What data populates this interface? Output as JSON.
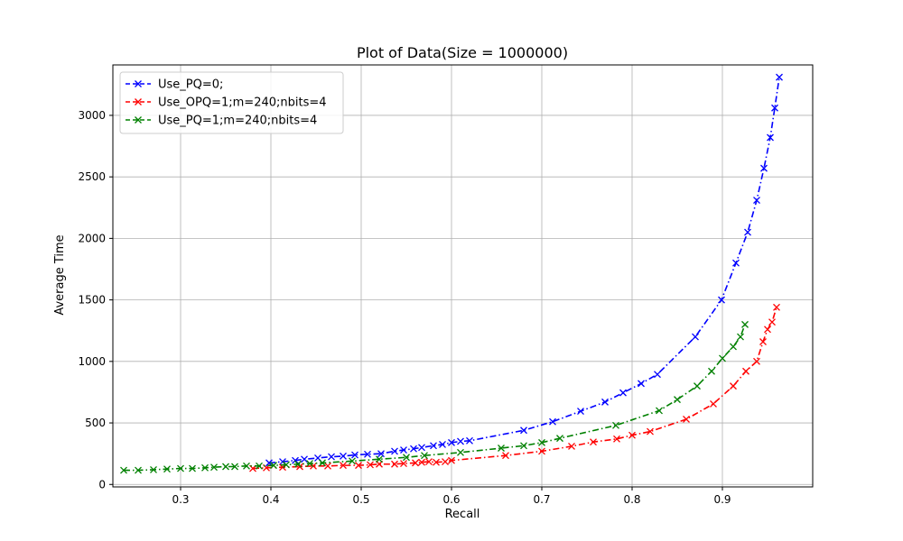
{
  "chart_data": {
    "type": "line",
    "title": "Plot of Data(Size = 1000000)",
    "xlabel": "Recall",
    "ylabel": "Average Time",
    "xlim": [
      0.225,
      1.0
    ],
    "ylim": [
      -20,
      3410
    ],
    "xticks": [
      0.3,
      0.4,
      0.5,
      0.6,
      0.7,
      0.8,
      0.9
    ],
    "yticks": [
      0,
      500,
      1000,
      1500,
      2000,
      2500,
      3000
    ],
    "grid": true,
    "legend_position": "top-left",
    "series": [
      {
        "name": "Use_PQ=0;",
        "color": "#0000ff",
        "linestyle": "dashdot",
        "marker": "x",
        "points": [
          [
            0.398,
            175
          ],
          [
            0.413,
            185
          ],
          [
            0.427,
            195
          ],
          [
            0.437,
            205
          ],
          [
            0.452,
            215
          ],
          [
            0.467,
            225
          ],
          [
            0.48,
            230
          ],
          [
            0.493,
            240
          ],
          [
            0.507,
            245
          ],
          [
            0.522,
            250
          ],
          [
            0.537,
            270
          ],
          [
            0.547,
            280
          ],
          [
            0.558,
            290
          ],
          [
            0.567,
            300
          ],
          [
            0.58,
            315
          ],
          [
            0.59,
            325
          ],
          [
            0.6,
            340
          ],
          [
            0.61,
            350
          ],
          [
            0.62,
            355
          ],
          [
            0.68,
            440
          ],
          [
            0.712,
            510
          ],
          [
            0.743,
            595
          ],
          [
            0.77,
            670
          ],
          [
            0.79,
            745
          ],
          [
            0.81,
            820
          ],
          [
            0.828,
            895
          ],
          [
            0.87,
            1200
          ],
          [
            0.899,
            1500
          ],
          [
            0.915,
            1800
          ],
          [
            0.928,
            2050
          ],
          [
            0.938,
            2310
          ],
          [
            0.946,
            2570
          ],
          [
            0.953,
            2820
          ],
          [
            0.958,
            3060
          ],
          [
            0.963,
            3310
          ]
        ]
      },
      {
        "name": "Use_OPQ=1;m=240;nbits=4",
        "color": "#ff0000",
        "linestyle": "dashdot",
        "marker": "x",
        "points": [
          [
            0.38,
            130
          ],
          [
            0.395,
            135
          ],
          [
            0.413,
            140
          ],
          [
            0.432,
            145
          ],
          [
            0.447,
            150
          ],
          [
            0.463,
            150
          ],
          [
            0.48,
            155
          ],
          [
            0.497,
            155
          ],
          [
            0.51,
            160
          ],
          [
            0.52,
            165
          ],
          [
            0.537,
            165
          ],
          [
            0.547,
            170
          ],
          [
            0.56,
            175
          ],
          [
            0.567,
            180
          ],
          [
            0.575,
            185
          ],
          [
            0.583,
            180
          ],
          [
            0.593,
            185
          ],
          [
            0.6,
            195
          ],
          [
            0.66,
            235
          ],
          [
            0.7,
            270
          ],
          [
            0.733,
            310
          ],
          [
            0.757,
            345
          ],
          [
            0.783,
            370
          ],
          [
            0.8,
            400
          ],
          [
            0.82,
            430
          ],
          [
            0.86,
            530
          ],
          [
            0.89,
            655
          ],
          [
            0.912,
            800
          ],
          [
            0.926,
            920
          ],
          [
            0.938,
            1000
          ],
          [
            0.945,
            1160
          ],
          [
            0.95,
            1260
          ],
          [
            0.955,
            1320
          ],
          [
            0.96,
            1440
          ]
        ]
      },
      {
        "name": "Use_PQ=1;m=240;nbits=4",
        "color": "#008000",
        "linestyle": "dashdot",
        "marker": "x",
        "points": [
          [
            0.237,
            115
          ],
          [
            0.253,
            115
          ],
          [
            0.27,
            120
          ],
          [
            0.285,
            125
          ],
          [
            0.3,
            130
          ],
          [
            0.313,
            130
          ],
          [
            0.327,
            135
          ],
          [
            0.337,
            140
          ],
          [
            0.35,
            145
          ],
          [
            0.36,
            145
          ],
          [
            0.373,
            150
          ],
          [
            0.387,
            150
          ],
          [
            0.403,
            155
          ],
          [
            0.417,
            160
          ],
          [
            0.43,
            165
          ],
          [
            0.443,
            170
          ],
          [
            0.457,
            175
          ],
          [
            0.49,
            190
          ],
          [
            0.52,
            205
          ],
          [
            0.55,
            220
          ],
          [
            0.57,
            235
          ],
          [
            0.61,
            260
          ],
          [
            0.655,
            295
          ],
          [
            0.68,
            315
          ],
          [
            0.7,
            340
          ],
          [
            0.72,
            375
          ],
          [
            0.782,
            480
          ],
          [
            0.83,
            600
          ],
          [
            0.85,
            690
          ],
          [
            0.872,
            800
          ],
          [
            0.888,
            920
          ],
          [
            0.9,
            1025
          ],
          [
            0.912,
            1120
          ],
          [
            0.92,
            1200
          ],
          [
            0.925,
            1300
          ]
        ]
      }
    ]
  }
}
